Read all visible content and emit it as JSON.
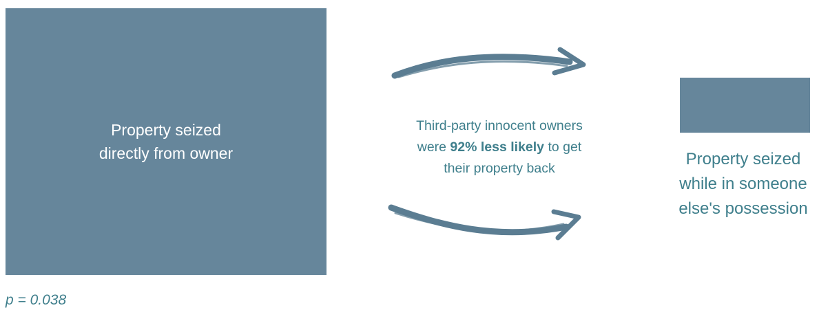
{
  "left_box": {
    "label_line1": "Property seized",
    "label_line2": "directly from owner"
  },
  "right_box": {
    "label_line1": "Property seized",
    "label_line2": "while in someone",
    "label_line3": "else's possession"
  },
  "middle": {
    "line1": "Third-party innocent owners",
    "line2_prefix": "were ",
    "line2_bold": "92% less likely",
    "line2_suffix": " to get",
    "line3": "their property back"
  },
  "footer": {
    "p_value": "p = 0.038"
  },
  "colors": {
    "box_fill": "#66869b",
    "text_teal": "#3f7f8c",
    "arrow": "#5b7d92"
  },
  "icons": [
    "brush-arrow-top",
    "brush-arrow-bottom"
  ]
}
